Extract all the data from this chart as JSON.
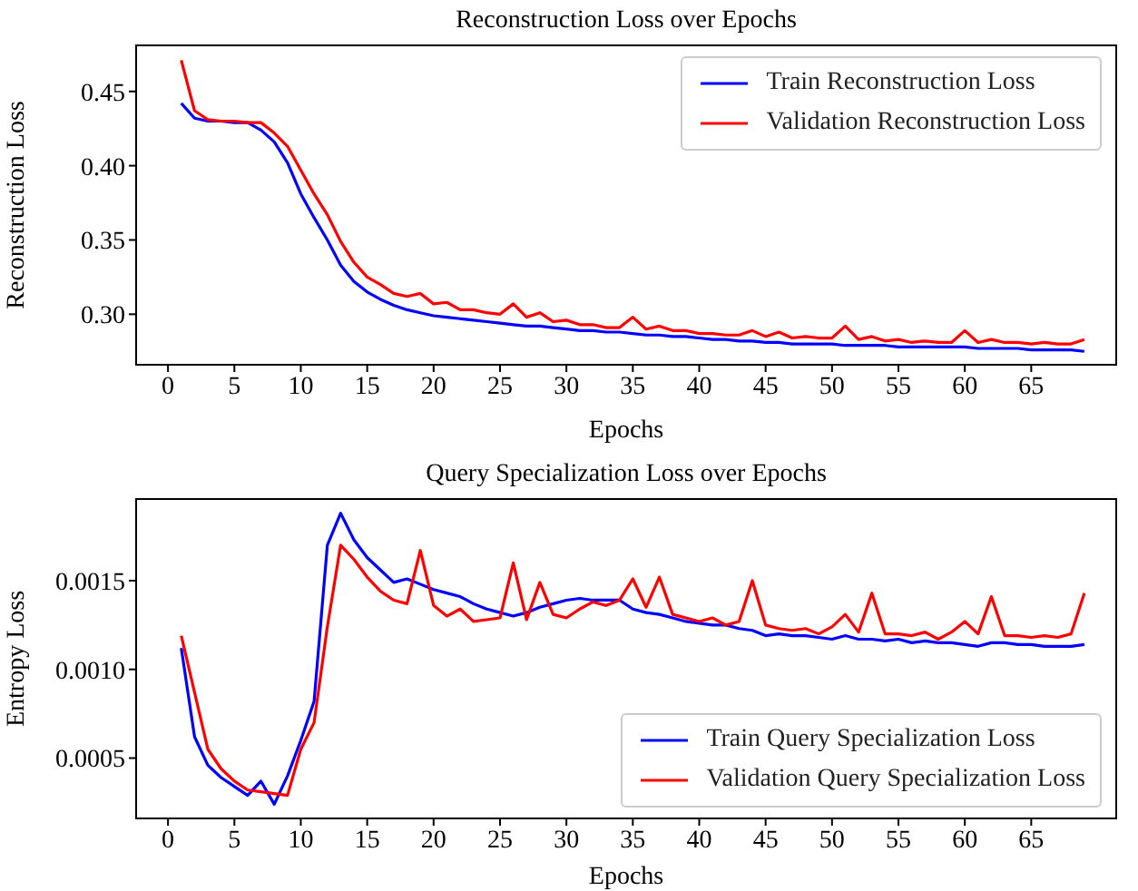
{
  "chart_data": [
    {
      "type": "line",
      "title": "Reconstruction Loss over Epochs",
      "xlabel": "Epochs",
      "ylabel": "Reconstruction Loss",
      "legend": "top right",
      "x": [
        1,
        2,
        3,
        4,
        5,
        6,
        7,
        8,
        9,
        10,
        11,
        12,
        13,
        14,
        15,
        16,
        17,
        18,
        19,
        20,
        21,
        22,
        23,
        24,
        25,
        26,
        27,
        28,
        29,
        30,
        31,
        32,
        33,
        34,
        35,
        36,
        37,
        38,
        39,
        40,
        41,
        42,
        43,
        44,
        45,
        46,
        47,
        48,
        49,
        50,
        51,
        52,
        53,
        54,
        55,
        56,
        57,
        58,
        59,
        60,
        61,
        62,
        63,
        64,
        65,
        66,
        67,
        68,
        69
      ],
      "xlim": [
        -2.4,
        71.4
      ],
      "xticks": [
        0,
        5,
        10,
        15,
        20,
        25,
        30,
        35,
        40,
        45,
        50,
        55,
        60,
        65
      ],
      "ylim": [
        0.266,
        0.481
      ],
      "yticks": [
        {
          "value": 0.3,
          "label": "0.30"
        },
        0.35,
        {
          "value": 0.4,
          "label": "0.40"
        },
        0.45
      ],
      "series": [
        {
          "name": "Train Reconstruction Loss",
          "color": "#0000ff",
          "values": [
            0.442,
            0.432,
            0.43,
            0.43,
            0.429,
            0.429,
            0.424,
            0.416,
            0.402,
            0.381,
            0.365,
            0.35,
            0.333,
            0.322,
            0.315,
            0.31,
            0.306,
            0.303,
            0.301,
            0.299,
            0.298,
            0.297,
            0.296,
            0.295,
            0.294,
            0.293,
            0.292,
            0.292,
            0.291,
            0.29,
            0.289,
            0.289,
            0.288,
            0.288,
            0.287,
            0.286,
            0.286,
            0.285,
            0.285,
            0.284,
            0.283,
            0.283,
            0.282,
            0.282,
            0.281,
            0.281,
            0.28,
            0.28,
            0.28,
            0.28,
            0.279,
            0.279,
            0.279,
            0.279,
            0.278,
            0.278,
            0.278,
            0.278,
            0.278,
            0.278,
            0.277,
            0.277,
            0.277,
            0.277,
            0.276,
            0.276,
            0.276,
            0.276,
            0.275
          ]
        },
        {
          "name": "Validation Reconstruction Loss",
          "color": "#ff0000",
          "values": [
            0.471,
            0.437,
            0.431,
            0.43,
            0.43,
            0.429,
            0.429,
            0.422,
            0.413,
            0.397,
            0.381,
            0.367,
            0.349,
            0.335,
            0.325,
            0.32,
            0.314,
            0.312,
            0.314,
            0.307,
            0.308,
            0.303,
            0.303,
            0.301,
            0.3,
            0.307,
            0.298,
            0.301,
            0.295,
            0.296,
            0.293,
            0.293,
            0.291,
            0.291,
            0.298,
            0.29,
            0.292,
            0.289,
            0.289,
            0.287,
            0.287,
            0.286,
            0.286,
            0.289,
            0.285,
            0.288,
            0.284,
            0.285,
            0.284,
            0.284,
            0.292,
            0.283,
            0.285,
            0.282,
            0.283,
            0.281,
            0.282,
            0.281,
            0.281,
            0.289,
            0.281,
            0.283,
            0.281,
            0.281,
            0.28,
            0.281,
            0.28,
            0.28,
            0.283
          ]
        }
      ]
    },
    {
      "type": "line",
      "title": "Query Specialization Loss over Epochs",
      "xlabel": "Epochs",
      "ylabel": "Entropy Loss",
      "legend": "bottom right",
      "x": [
        1,
        2,
        3,
        4,
        5,
        6,
        7,
        8,
        9,
        10,
        11,
        12,
        13,
        14,
        15,
        16,
        17,
        18,
        19,
        20,
        21,
        22,
        23,
        24,
        25,
        26,
        27,
        28,
        29,
        30,
        31,
        32,
        33,
        34,
        35,
        36,
        37,
        38,
        39,
        40,
        41,
        42,
        43,
        44,
        45,
        46,
        47,
        48,
        49,
        50,
        51,
        52,
        53,
        54,
        55,
        56,
        57,
        58,
        59,
        60,
        61,
        62,
        63,
        64,
        65,
        66,
        67,
        68,
        69
      ],
      "xlim": [
        -2.4,
        71.4
      ],
      "xticks": [
        0,
        5,
        10,
        15,
        20,
        25,
        30,
        35,
        40,
        45,
        50,
        55,
        60,
        65
      ],
      "ylim": [
        0.00016,
        0.00196
      ],
      "yticks": [
        0.0005,
        {
          "value": 0.001,
          "label": "0.0010"
        },
        0.0015
      ],
      "series": [
        {
          "name": "Train Query Specialization Loss",
          "color": "#0000ff",
          "values": [
            0.00112,
            0.00062,
            0.00046,
            0.00039,
            0.00034,
            0.00029,
            0.00037,
            0.00024,
            0.0004,
            0.0006,
            0.00082,
            0.0017,
            0.00188,
            0.00173,
            0.00163,
            0.00156,
            0.00149,
            0.00151,
            0.00148,
            0.00145,
            0.00143,
            0.00141,
            0.00137,
            0.00134,
            0.00132,
            0.0013,
            0.00132,
            0.00135,
            0.00137,
            0.00139,
            0.0014,
            0.00139,
            0.00139,
            0.00139,
            0.00134,
            0.00132,
            0.00131,
            0.00129,
            0.00127,
            0.00126,
            0.00125,
            0.00125,
            0.00123,
            0.00122,
            0.00119,
            0.0012,
            0.00119,
            0.00119,
            0.00118,
            0.00117,
            0.00119,
            0.00117,
            0.00117,
            0.00116,
            0.00117,
            0.00115,
            0.00116,
            0.00115,
            0.00115,
            0.00114,
            0.00113,
            0.00115,
            0.00115,
            0.00114,
            0.00114,
            0.00113,
            0.00113,
            0.00113,
            0.00114
          ]
        },
        {
          "name": "Validation Query Specialization Loss",
          "color": "#ff0000",
          "values": [
            0.00119,
            0.00087,
            0.00055,
            0.00044,
            0.00037,
            0.00032,
            0.00031,
            0.0003,
            0.00029,
            0.00055,
            0.0007,
            0.00124,
            0.0017,
            0.00162,
            0.00152,
            0.00144,
            0.00139,
            0.00137,
            0.00167,
            0.00136,
            0.0013,
            0.00134,
            0.00127,
            0.00128,
            0.00129,
            0.0016,
            0.00128,
            0.00149,
            0.00131,
            0.00129,
            0.00134,
            0.00138,
            0.00136,
            0.00139,
            0.00151,
            0.00135,
            0.00152,
            0.00131,
            0.00129,
            0.00127,
            0.00129,
            0.00125,
            0.00127,
            0.0015,
            0.00125,
            0.00123,
            0.00122,
            0.00123,
            0.0012,
            0.00124,
            0.00131,
            0.00121,
            0.00143,
            0.0012,
            0.0012,
            0.00119,
            0.00121,
            0.00117,
            0.00121,
            0.00127,
            0.0012,
            0.00141,
            0.00119,
            0.00119,
            0.00118,
            0.00119,
            0.00118,
            0.0012,
            0.00143
          ]
        }
      ]
    }
  ]
}
